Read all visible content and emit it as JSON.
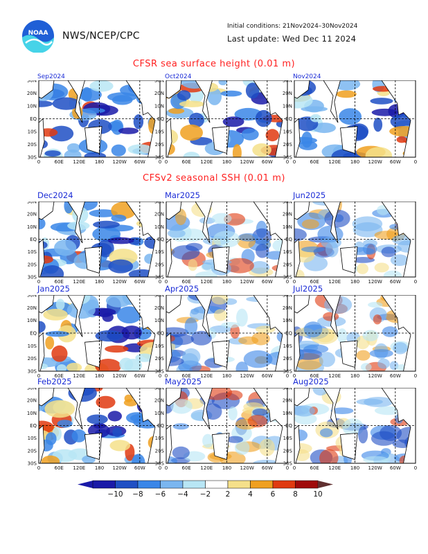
{
  "header": {
    "org": "NWS/NCEP/CPC",
    "initial_conditions": "Initial conditions: 21Nov2024–30Nov2024",
    "last_update": "Last update: Wed Dec 11 2024",
    "logo_text": "NOAA"
  },
  "section1": {
    "title": "CFSR sea surface height (0.01 m)"
  },
  "section2": {
    "title": "CFSv2 seasonal SSH (0.01 m)"
  },
  "axes": {
    "y_ticks": [
      "30N",
      "20N",
      "10N",
      "EQ",
      "10S",
      "20S",
      "30S"
    ],
    "x_ticks": [
      "0",
      "60E",
      "120E",
      "180",
      "120W",
      "60W",
      "0"
    ]
  },
  "panels": [
    {
      "label": "Sep2024",
      "anomaly": "neg"
    },
    {
      "label": "Oct2024",
      "anomaly": "neg"
    },
    {
      "label": "Nov2024",
      "anomaly": "neg"
    },
    {
      "label": "Dec2024",
      "anomaly": "neg"
    },
    {
      "label": "Mar2025",
      "anomaly": "weak"
    },
    {
      "label": "Jun2025",
      "anomaly": "weak"
    },
    {
      "label": "Jan2025",
      "anomaly": "neg"
    },
    {
      "label": "Apr2025",
      "anomaly": "weak"
    },
    {
      "label": "Jul2025",
      "anomaly": "weak"
    },
    {
      "label": "Feb2025",
      "anomaly": "neg"
    },
    {
      "label": "May2025",
      "anomaly": "weak"
    },
    {
      "label": "Aug2025",
      "anomaly": "weak"
    }
  ],
  "colorbar": {
    "labels": [
      "−10",
      "−8",
      "−6",
      "−4",
      "−2",
      "2",
      "4",
      "6",
      "8",
      "10"
    ],
    "colors": [
      "#1a1aa8",
      "#1f4fc4",
      "#3a86e8",
      "#7ab6f0",
      "#b8e6f5",
      "#ffffff",
      "#f5e08a",
      "#f0a020",
      "#e03a10",
      "#a00a0a",
      "#603030"
    ]
  }
}
